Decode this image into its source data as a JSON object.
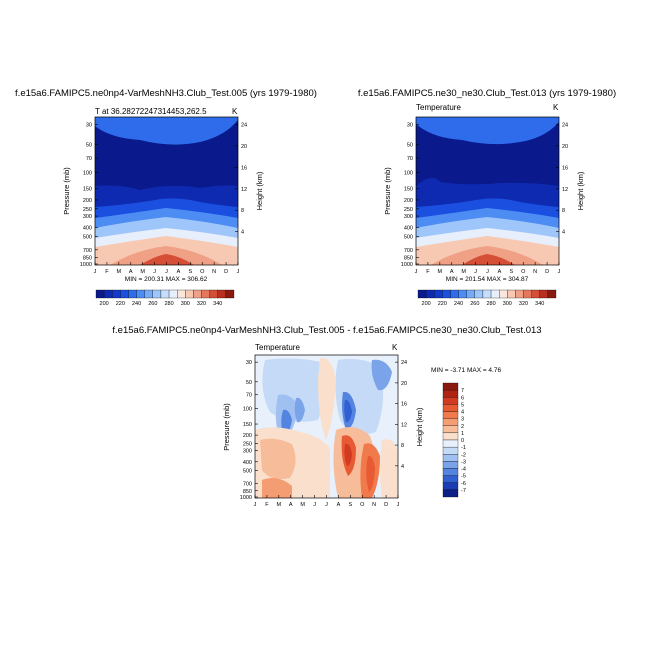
{
  "chart_data": [
    {
      "type": "contour",
      "title": "f.e15a6.FAMIPC5.ne0np4-VarMeshNH3.Club_Test.005 (yrs 1979-1980)",
      "subtitle_left": "T at 36.28272247314453,262.5",
      "subtitle_right": "K",
      "x_ticks": [
        "J",
        "F",
        "M",
        "A",
        "M",
        "J",
        "J",
        "A",
        "S",
        "O",
        "N",
        "D",
        "J"
      ],
      "pressure_ticks": [
        "30",
        "50",
        "70",
        "100",
        "150",
        "200",
        "250",
        "300",
        "400",
        "500",
        "700",
        "850",
        "1000"
      ],
      "pressure_label": "Pressure (mb)",
      "height_ticks": [
        "24",
        "20",
        "16",
        "12",
        "8",
        "4"
      ],
      "height_label": "Height (km)",
      "stats": "MIN = 200.31  MAX = 306.62",
      "min": 200.31,
      "max": 306.62,
      "colorbar_ticks": [
        "200",
        "220",
        "240",
        "260",
        "280",
        "300",
        "320",
        "340"
      ]
    },
    {
      "type": "contour",
      "title": "f.e15a6.FAMIPC5.ne30_ne30.Club_Test.013 (yrs 1979-1980)",
      "subtitle_left": "Temperature",
      "subtitle_right": "K",
      "x_ticks": [
        "J",
        "F",
        "M",
        "A",
        "M",
        "J",
        "J",
        "A",
        "S",
        "O",
        "N",
        "D",
        "J"
      ],
      "pressure_ticks": [
        "30",
        "50",
        "70",
        "100",
        "150",
        "200",
        "250",
        "300",
        "400",
        "500",
        "700",
        "850",
        "1000"
      ],
      "pressure_label": "Pressure (mb)",
      "height_ticks": [
        "24",
        "20",
        "16",
        "12",
        "8",
        "4"
      ],
      "height_label": "Height (km)",
      "stats": "MIN = 201.54  MAX = 304.87",
      "min": 201.54,
      "max": 304.87,
      "colorbar_ticks": [
        "200",
        "220",
        "240",
        "260",
        "280",
        "300",
        "320",
        "340"
      ]
    },
    {
      "type": "contour",
      "title": "f.e15a6.FAMIPC5.ne0np4-VarMeshNH3.Club_Test.005 - f.e15a6.FAMIPC5.ne30_ne30.Club_Test.013",
      "subtitle_left": "Temperature",
      "subtitle_right": "K",
      "x_ticks": [
        "J",
        "F",
        "M",
        "A",
        "M",
        "J",
        "J",
        "A",
        "S",
        "O",
        "N",
        "D",
        "J"
      ],
      "pressure_ticks": [
        "30",
        "50",
        "70",
        "100",
        "150",
        "200",
        "250",
        "300",
        "400",
        "500",
        "700",
        "850",
        "1000"
      ],
      "pressure_label": "Pressure (mb)",
      "height_ticks": [
        "24",
        "20",
        "16",
        "12",
        "8",
        "4"
      ],
      "height_label": "Height (km)",
      "stats": "MIN = -3.71  MAX =  4.76",
      "min": -3.71,
      "max": 4.76,
      "colorbar_ticks": [
        "7",
        "6",
        "5",
        "4",
        "3",
        "2",
        "1",
        "0",
        "-1",
        "-2",
        "-3",
        "-4",
        "-5",
        "-6",
        "-7"
      ]
    }
  ],
  "colors": {
    "temperature_scale": [
      "#0a1a8c",
      "#0d2ab0",
      "#1238cc",
      "#1a4fe0",
      "#2f6cec",
      "#4d8cf2",
      "#74aaf6",
      "#9ec6fa",
      "#c6ddfb",
      "#e6effb",
      "#fbe6dc",
      "#f7c8b2",
      "#f0a185",
      "#e5785c",
      "#d44f35",
      "#b8301f",
      "#8a1a10"
    ],
    "difference_scale": [
      "#8a1a10",
      "#b02414",
      "#d23a22",
      "#e85a33",
      "#f07a4c",
      "#f49c72",
      "#f7bd9a",
      "#fadfcc",
      "#e8f0fb",
      "#c5daf7",
      "#a0c0f2",
      "#7aa3ea",
      "#5583e0",
      "#2f5fd0",
      "#1b3cb4",
      "#0d1f86"
    ]
  }
}
